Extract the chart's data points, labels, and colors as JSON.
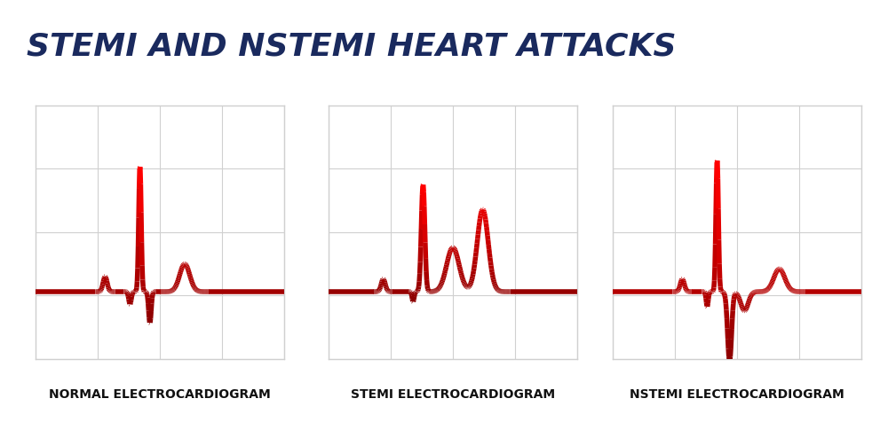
{
  "title": "STEMI AND NSTEMI HEART ATTACKS",
  "title_color": "#1a2a5e",
  "title_fontsize": 26,
  "bg_color": "#ffffff",
  "panel_bg": "#ffffff",
  "grid_color": "#d0d0d0",
  "line_color_dark": "#8b0000",
  "line_color_bright": "#cc2222",
  "line_width": 3.5,
  "labels": [
    "NORMAL ELECTROCARDIOGRAM",
    "STEMI ELECTROCARDIOGRAM",
    "NSTEMI ELECTROCARDIOGRAM"
  ],
  "label_fontsize": 10,
  "label_color": "#111111"
}
